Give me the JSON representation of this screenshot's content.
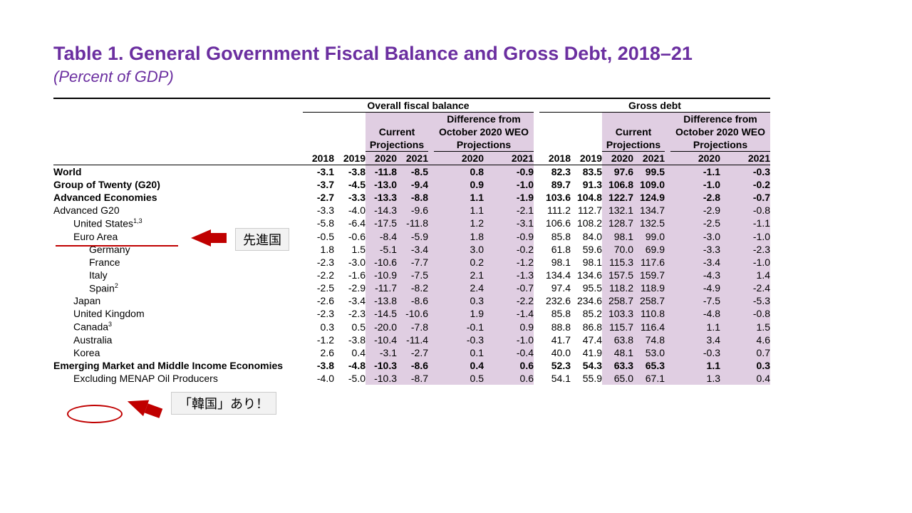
{
  "title": "Table 1. General Government Fiscal Balance and Gross Debt, 2018–21",
  "subtitle": "(Percent of GDP)",
  "section_headers": {
    "overall": "Overall fiscal balance",
    "gross": "Gross debt",
    "current_proj": "Current Projections",
    "diff_l1": "Difference from",
    "diff_l2": "October 2020 WEO",
    "diff_l3": "Projections"
  },
  "year_cols": {
    "y18": "2018",
    "y19": "2019",
    "y20": "2020",
    "y21": "2021"
  },
  "annotations": {
    "advanced_label": "先進国",
    "korea_label": "「韓国」あり！"
  },
  "rows": [
    {
      "id": "world",
      "bold": true,
      "indent": 0,
      "label": "World",
      "f18": "-3.1",
      "f19": "-3.8",
      "f20": "-11.8",
      "f21": "-8.5",
      "d20": "0.8",
      "d21": "-0.9",
      "g18": "82.3",
      "g19": "83.5",
      "g20": "97.6",
      "g21": "99.5",
      "gd20": "-1.1",
      "gd21": "-0.3"
    },
    {
      "id": "g20",
      "bold": true,
      "indent": 0,
      "label": "Group of Twenty (G20)",
      "f18": "-3.7",
      "f19": "-4.5",
      "f20": "-13.0",
      "f21": "-9.4",
      "d20": "0.9",
      "d21": "-1.0",
      "g18": "89.7",
      "g19": "91.3",
      "g20": "106.8",
      "g21": "109.0",
      "gd20": "-1.0",
      "gd21": "-0.2"
    },
    {
      "id": "ae",
      "bold": true,
      "indent": 0,
      "label": "Advanced Economies",
      "f18": "-2.7",
      "f19": "-3.3",
      "f20": "-13.3",
      "f21": "-8.8",
      "d20": "1.1",
      "d21": "-1.9",
      "g18": "103.6",
      "g19": "104.8",
      "g20": "122.7",
      "g21": "124.9",
      "gd20": "-2.8",
      "gd21": "-0.7"
    },
    {
      "id": "adg20",
      "bold": false,
      "indent": 0,
      "label": "Advanced G20",
      "f18": "-3.3",
      "f19": "-4.0",
      "f20": "-14.3",
      "f21": "-9.6",
      "d20": "1.1",
      "d21": "-2.1",
      "g18": "111.2",
      "g19": "112.7",
      "g20": "132.1",
      "g21": "134.7",
      "gd20": "-2.9",
      "gd21": "-0.8"
    },
    {
      "id": "us",
      "bold": false,
      "indent": 1,
      "label": "United States",
      "sup": "1,3",
      "f18": "-5.8",
      "f19": "-6.4",
      "f20": "-17.5",
      "f21": "-11.8",
      "d20": "1.2",
      "d21": "-3.1",
      "g18": "106.6",
      "g19": "108.2",
      "g20": "128.7",
      "g21": "132.5",
      "gd20": "-2.5",
      "gd21": "-1.1"
    },
    {
      "id": "euro",
      "bold": false,
      "indent": 1,
      "label": "Euro Area",
      "f18": "-0.5",
      "f19": "-0.6",
      "f20": "-8.4",
      "f21": "-5.9",
      "d20": "1.8",
      "d21": "-0.9",
      "g18": "85.8",
      "g19": "84.0",
      "g20": "98.1",
      "g21": "99.0",
      "gd20": "-3.0",
      "gd21": "-1.0"
    },
    {
      "id": "de",
      "bold": false,
      "indent": 2,
      "label": "Germany",
      "f18": "1.8",
      "f19": "1.5",
      "f20": "-5.1",
      "f21": "-3.4",
      "d20": "3.0",
      "d21": "-0.2",
      "g18": "61.8",
      "g19": "59.6",
      "g20": "70.0",
      "g21": "69.9",
      "gd20": "-3.3",
      "gd21": "-2.3"
    },
    {
      "id": "fr",
      "bold": false,
      "indent": 2,
      "label": "France",
      "f18": "-2.3",
      "f19": "-3.0",
      "f20": "-10.6",
      "f21": "-7.7",
      "d20": "0.2",
      "d21": "-1.2",
      "g18": "98.1",
      "g19": "98.1",
      "g20": "115.3",
      "g21": "117.6",
      "gd20": "-3.4",
      "gd21": "-1.0"
    },
    {
      "id": "it",
      "bold": false,
      "indent": 2,
      "label": "Italy",
      "f18": "-2.2",
      "f19": "-1.6",
      "f20": "-10.9",
      "f21": "-7.5",
      "d20": "2.1",
      "d21": "-1.3",
      "g18": "134.4",
      "g19": "134.6",
      "g20": "157.5",
      "g21": "159.7",
      "gd20": "-4.3",
      "gd21": "1.4"
    },
    {
      "id": "es",
      "bold": false,
      "indent": 2,
      "label": "Spain",
      "sup": "2",
      "f18": "-2.5",
      "f19": "-2.9",
      "f20": "-11.7",
      "f21": "-8.2",
      "d20": "2.4",
      "d21": "-0.7",
      "g18": "97.4",
      "g19": "95.5",
      "g20": "118.2",
      "g21": "118.9",
      "gd20": "-4.9",
      "gd21": "-2.4"
    },
    {
      "id": "jp",
      "bold": false,
      "indent": 1,
      "label": "Japan",
      "f18": "-2.6",
      "f19": "-3.4",
      "f20": "-13.8",
      "f21": "-8.6",
      "d20": "0.3",
      "d21": "-2.2",
      "g18": "232.6",
      "g19": "234.6",
      "g20": "258.7",
      "g21": "258.7",
      "gd20": "-7.5",
      "gd21": "-5.3"
    },
    {
      "id": "uk",
      "bold": false,
      "indent": 1,
      "label": "United Kingdom",
      "f18": "-2.3",
      "f19": "-2.3",
      "f20": "-14.5",
      "f21": "-10.6",
      "d20": "1.9",
      "d21": "-1.4",
      "g18": "85.8",
      "g19": "85.2",
      "g20": "103.3",
      "g21": "110.8",
      "gd20": "-4.8",
      "gd21": "-0.8"
    },
    {
      "id": "ca",
      "bold": false,
      "indent": 1,
      "label": "Canada",
      "sup": "3",
      "f18": "0.3",
      "f19": "0.5",
      "f20": "-20.0",
      "f21": "-7.8",
      "d20": "-0.1",
      "d21": "0.9",
      "g18": "88.8",
      "g19": "86.8",
      "g20": "115.7",
      "g21": "116.4",
      "gd20": "1.1",
      "gd21": "1.5"
    },
    {
      "id": "au",
      "bold": false,
      "indent": 1,
      "label": "Australia",
      "f18": "-1.2",
      "f19": "-3.8",
      "f20": "-10.4",
      "f21": "-11.4",
      "d20": "-0.3",
      "d21": "-1.0",
      "g18": "41.7",
      "g19": "47.4",
      "g20": "63.8",
      "g21": "74.8",
      "gd20": "3.4",
      "gd21": "4.6"
    },
    {
      "id": "kr",
      "bold": false,
      "indent": 1,
      "label": "Korea",
      "f18": "2.6",
      "f19": "0.4",
      "f20": "-3.1",
      "f21": "-2.7",
      "d20": "0.1",
      "d21": "-0.4",
      "g18": "40.0",
      "g19": "41.9",
      "g20": "48.1",
      "g21": "53.0",
      "gd20": "-0.3",
      "gd21": "0.7"
    },
    {
      "id": "em",
      "bold": true,
      "indent": 0,
      "label": "Emerging Market and Middle Income Economies",
      "f18": "-3.8",
      "f19": "-4.8",
      "f20": "-10.3",
      "f21": "-8.6",
      "d20": "0.4",
      "d21": "0.6",
      "g18": "52.3",
      "g19": "54.3",
      "g20": "63.3",
      "g21": "65.3",
      "gd20": "1.1",
      "gd21": "0.3"
    },
    {
      "id": "exmena",
      "bold": false,
      "indent": 1,
      "label": "Excluding MENAP Oil Producers",
      "f18": "-4.0",
      "f19": "-5.0",
      "f20": "-10.3",
      "f21": "-8.7",
      "d20": "0.5",
      "d21": "0.6",
      "g18": "54.1",
      "g19": "55.9",
      "g20": "65.0",
      "g21": "67.1",
      "gd20": "1.3",
      "gd21": "0.4"
    }
  ]
}
